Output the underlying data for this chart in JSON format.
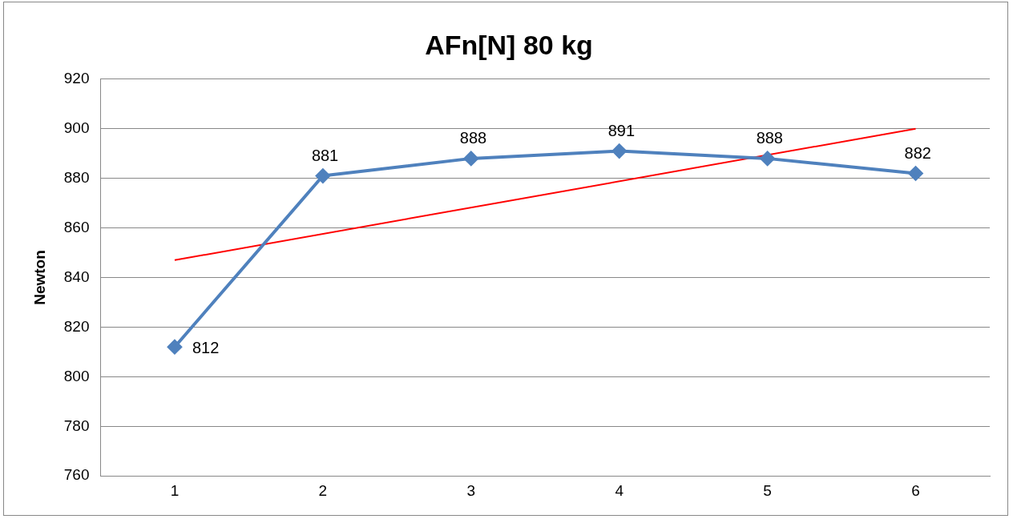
{
  "chart_data": {
    "type": "line",
    "title": "AFn[N] 80 kg",
    "ylabel": "Newton",
    "x": [
      1,
      2,
      3,
      4,
      5,
      6
    ],
    "xlim": [
      0.5,
      6.5
    ],
    "xticks": [
      1,
      2,
      3,
      4,
      5,
      6
    ],
    "ylim": [
      760,
      920
    ],
    "yticks": [
      760,
      780,
      800,
      820,
      840,
      860,
      880,
      900,
      920
    ],
    "grid": "y",
    "legend": false,
    "series": [
      {
        "color": "#4f81bd",
        "marker": "diamond",
        "values": [
          812,
          881,
          888,
          891,
          888,
          882
        ],
        "value_labels": [
          "812",
          "881",
          "888",
          "891",
          "888",
          "882"
        ]
      },
      {
        "type": "line",
        "color": "#ff0000",
        "marker": "none",
        "x": [
          1,
          6
        ],
        "values": [
          847,
          900
        ]
      }
    ]
  }
}
